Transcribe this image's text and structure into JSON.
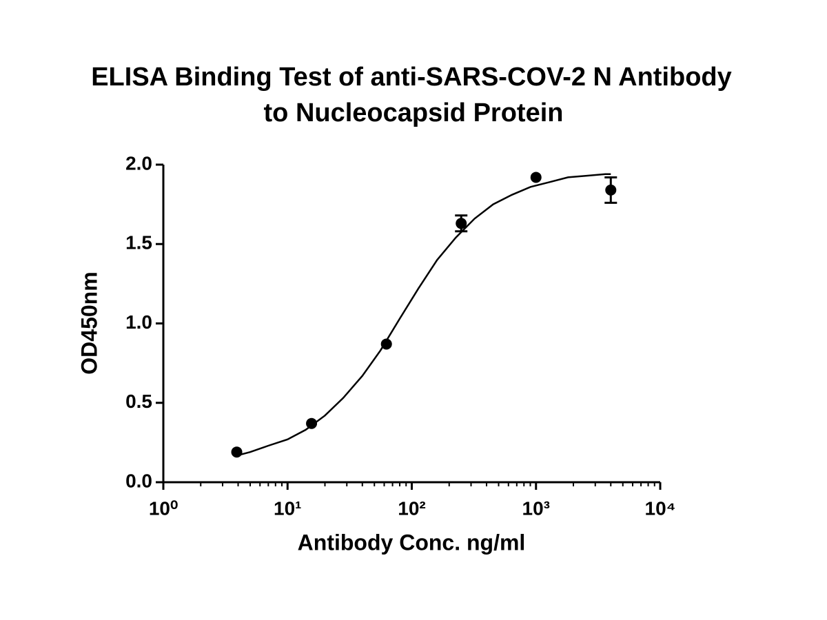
{
  "chart_data": {
    "type": "scatter",
    "title": [
      "ELISA Binding Test of anti-SARS-COV-2 N Antibody",
      "to Nucleocapsid Protein"
    ],
    "x_label": "Antibody Conc. ng/ml",
    "y_label": "OD450nm",
    "x_scale": "log",
    "color": "#000000",
    "x": [
      3.9,
      15.6,
      62.5,
      250,
      1000,
      4000
    ],
    "values": [
      0.19,
      0.37,
      0.87,
      1.63,
      1.92,
      1.84
    ],
    "errors": [
      null,
      null,
      null,
      0.05,
      null,
      0.08
    ],
    "curve": {
      "x": [
        4,
        5,
        7,
        10,
        14,
        20,
        28,
        40,
        56,
        80,
        113,
        160,
        226,
        320,
        452,
        640,
        905,
        1280,
        1810,
        2560,
        3620,
        4000
      ],
      "y": [
        0.17,
        0.19,
        0.23,
        0.27,
        0.33,
        0.42,
        0.53,
        0.67,
        0.83,
        1.03,
        1.22,
        1.4,
        1.54,
        1.66,
        1.75,
        1.81,
        1.86,
        1.89,
        1.92,
        1.93,
        1.94,
        1.94
      ]
    },
    "xlim": [
      1,
      10000
    ],
    "xticks": [
      {
        "value": 1,
        "label": "10⁰"
      },
      {
        "value": 10,
        "label": "10¹"
      },
      {
        "value": 100,
        "label": "10²"
      },
      {
        "value": 1000,
        "label": "10³"
      },
      {
        "value": 10000,
        "label": "10⁴"
      }
    ],
    "ylim": [
      0,
      2
    ],
    "yticks": [
      {
        "value": 0,
        "label": "0.0"
      },
      0.5,
      {
        "value": 1,
        "label": "1.0"
      },
      1.5,
      {
        "value": 2,
        "label": "2.0"
      }
    ]
  }
}
